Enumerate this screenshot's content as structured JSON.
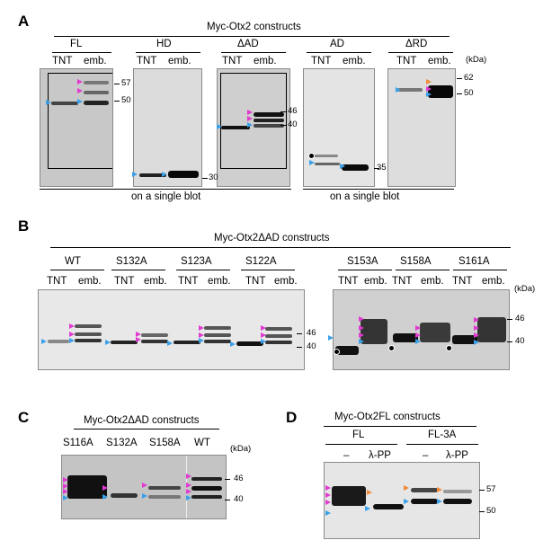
{
  "panelA": {
    "label": "A",
    "title": "Myc-Otx2 constructs",
    "groups": [
      "FL",
      "HD",
      "ΔAD",
      "AD",
      "ΔRD"
    ],
    "lanes": [
      "TNT",
      "emb.",
      "TNT",
      "emb.",
      "TNT",
      "emb.",
      "TNT",
      "emb.",
      "TNT",
      "emb."
    ],
    "kda": "(kDa)",
    "markers": [
      "57",
      "50",
      "30",
      "46",
      "40",
      "35",
      "62",
      "50"
    ],
    "blot_note_1": "on a single blot",
    "blot_note_2": "on a single blot"
  },
  "panelB": {
    "label": "B",
    "title": "Myc-Otx2ΔAD constructs",
    "groups": [
      "WT",
      "S132A",
      "S123A",
      "S122A",
      "S153A",
      "S158A",
      "S161A"
    ],
    "lanes": [
      "TNT",
      "emb.",
      "TNT",
      "emb.",
      "TNT",
      "emb.",
      "TNT",
      "emb.",
      "TNT",
      "emb.",
      "TNT",
      "emb.",
      "TNT",
      "emb."
    ],
    "kda": "(kDa)",
    "markers": [
      "46",
      "40",
      "46",
      "40"
    ]
  },
  "panelC": {
    "label": "C",
    "title": "Myc-Otx2ΔAD constructs",
    "groups": [
      "S116A",
      "S132A",
      "S158A",
      "WT"
    ],
    "kda": "(kDa)",
    "markers": [
      "46",
      "40"
    ]
  },
  "panelD": {
    "label": "D",
    "title": "Myc-Otx2FL constructs",
    "groups": [
      "FL",
      "FL-3A"
    ],
    "lanes": [
      "–",
      "λ-PP",
      "–",
      "λ-PP"
    ],
    "markers": [
      "57",
      "50"
    ]
  },
  "colors": {
    "blue_arrow": "#3aa0e8",
    "magenta_arrow": "#e03ad0",
    "orange_arrow": "#f08a3a"
  }
}
